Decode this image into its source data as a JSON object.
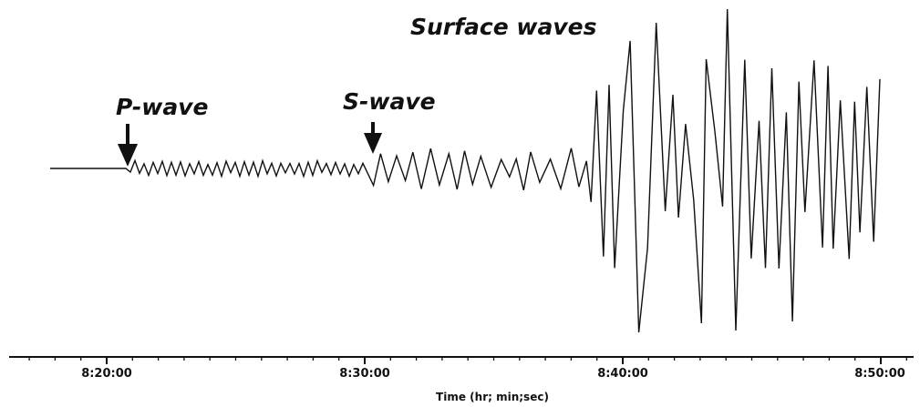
{
  "annotations": {
    "p_wave": "P-wave",
    "s_wave": "S-wave",
    "surface_waves": "Surface waves"
  },
  "axis": {
    "tick_labels": [
      "8:20:00",
      "8:30:00",
      "8:40:00",
      "8:50:00"
    ],
    "title": "Time (hr; min;sec)"
  }
}
